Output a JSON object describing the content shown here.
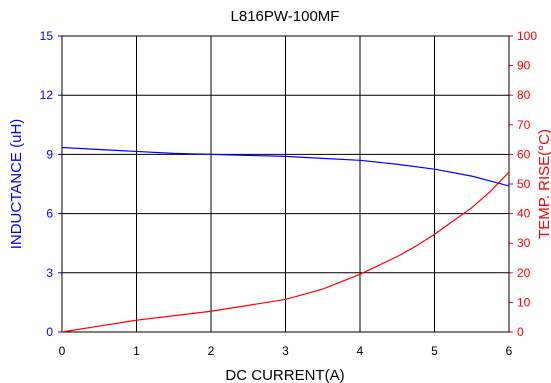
{
  "chart_data": {
    "type": "line",
    "title": "L816PW-100MF",
    "xlabel": "DC CURRENT(A)",
    "ylabel": "INDUCTANCE (uH)",
    "y2label": "TEMP. RISE(°C)",
    "xlim": [
      0,
      6
    ],
    "ylim": [
      0,
      15
    ],
    "y2lim": [
      0,
      100
    ],
    "x_ticks": [
      "0",
      "1",
      "2",
      "3",
      "4",
      "5",
      "6"
    ],
    "y_ticks": [
      "0",
      "3",
      "6",
      "9",
      "12",
      "15"
    ],
    "y2_ticks": [
      "0",
      "10",
      "20",
      "30",
      "40",
      "50",
      "60",
      "70",
      "80",
      "90",
      "100"
    ],
    "grid": true,
    "colors": {
      "inductance": "#0000ff",
      "temp_rise": "#ff0000",
      "grid": "#000000"
    },
    "series": [
      {
        "axis": "left",
        "color": "#0000ff",
        "x": [
          0,
          0.25,
          0.5,
          1,
          1.5,
          2,
          2.5,
          3,
          3.5,
          4,
          4.5,
          5,
          5.5,
          5.75,
          6
        ],
        "values": [
          9.35,
          9.3,
          9.25,
          9.15,
          9.05,
          9.0,
          8.95,
          8.9,
          8.8,
          8.7,
          8.5,
          8.25,
          7.9,
          7.65,
          7.4
        ]
      },
      {
        "axis": "right",
        "color": "#ff0000",
        "x": [
          0,
          0.5,
          1,
          1.5,
          2,
          2.5,
          3,
          3.5,
          4,
          4.25,
          4.5,
          4.75,
          5,
          5.25,
          5.5,
          5.75,
          6
        ],
        "values": [
          0,
          2,
          4,
          5.5,
          7,
          9,
          11,
          14.5,
          19.5,
          22.5,
          25.5,
          29,
          33,
          37.5,
          42,
          47.5,
          54
        ]
      }
    ]
  }
}
